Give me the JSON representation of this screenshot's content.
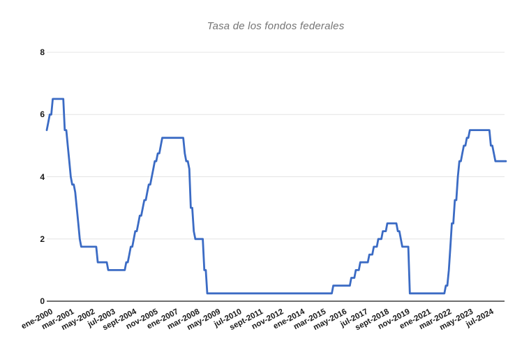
{
  "page": {
    "background": "#ffffff"
  },
  "chart_data": {
    "type": "line",
    "title": "Tasa de los fondos federales",
    "title_color": "#757575",
    "xlabel": "",
    "ylabel": "",
    "ylim": [
      0,
      8
    ],
    "y_ticks": [
      0,
      2,
      4,
      6,
      8
    ],
    "grid": true,
    "legend": "none",
    "grid_color": "#e4e4e4",
    "axis_line_color": "#6e6e6e",
    "x_tick_month_interval": 14,
    "x_tick_labels": [
      "ene-2000",
      "mar-2001",
      "may-2002",
      "jul-2003",
      "sept-2004",
      "nov-2005",
      "ene-2007",
      "mar-2008",
      "may-2009",
      "jul-2010",
      "sept-2011",
      "nov-2012",
      "ene-2014",
      "mar-2015",
      "may-2016",
      "jul-2017",
      "sept-2018",
      "nov-2019",
      "ene-2021",
      "mar-2022",
      "may-2023",
      "jul-2024"
    ],
    "series": [
      {
        "name": "Tasa de los fondos federales",
        "color": "#3b6bc4",
        "frequency": "monthly",
        "start_month": "ene-2000",
        "end_month": "jul-2025",
        "values": [
          5.5,
          5.75,
          6,
          6,
          6.5,
          6.5,
          6.5,
          6.5,
          6.5,
          6.5,
          6.5,
          6.5,
          5.5,
          5.5,
          5,
          4.5,
          4,
          3.75,
          3.75,
          3.5,
          3,
          2.5,
          2,
          1.75,
          1.75,
          1.75,
          1.75,
          1.75,
          1.75,
          1.75,
          1.75,
          1.75,
          1.75,
          1.75,
          1.25,
          1.25,
          1.25,
          1.25,
          1.25,
          1.25,
          1.25,
          1,
          1,
          1,
          1,
          1,
          1,
          1,
          1,
          1,
          1,
          1,
          1,
          1.25,
          1.25,
          1.5,
          1.75,
          1.75,
          2,
          2.25,
          2.25,
          2.5,
          2.75,
          2.75,
          3,
          3.25,
          3.25,
          3.5,
          3.75,
          3.75,
          4,
          4.25,
          4.5,
          4.5,
          4.75,
          4.75,
          5,
          5.25,
          5.25,
          5.25,
          5.25,
          5.25,
          5.25,
          5.25,
          5.25,
          5.25,
          5.25,
          5.25,
          5.25,
          5.25,
          5.25,
          5.25,
          4.75,
          4.5,
          4.5,
          4.25,
          3,
          3,
          2.25,
          2,
          2,
          2,
          2,
          2,
          2,
          1,
          1,
          0.25,
          0.25,
          0.25,
          0.25,
          0.25,
          0.25,
          0.25,
          0.25,
          0.25,
          0.25,
          0.25,
          0.25,
          0.25,
          0.25,
          0.25,
          0.25,
          0.25,
          0.25,
          0.25,
          0.25,
          0.25,
          0.25,
          0.25,
          0.25,
          0.25,
          0.25,
          0.25,
          0.25,
          0.25,
          0.25,
          0.25,
          0.25,
          0.25,
          0.25,
          0.25,
          0.25,
          0.25,
          0.25,
          0.25,
          0.25,
          0.25,
          0.25,
          0.25,
          0.25,
          0.25,
          0.25,
          0.25,
          0.25,
          0.25,
          0.25,
          0.25,
          0.25,
          0.25,
          0.25,
          0.25,
          0.25,
          0.25,
          0.25,
          0.25,
          0.25,
          0.25,
          0.25,
          0.25,
          0.25,
          0.25,
          0.25,
          0.25,
          0.25,
          0.25,
          0.25,
          0.25,
          0.25,
          0.25,
          0.25,
          0.25,
          0.25,
          0.25,
          0.25,
          0.25,
          0.25,
          0.25,
          0.25,
          0.25,
          0.25,
          0.5,
          0.5,
          0.5,
          0.5,
          0.5,
          0.5,
          0.5,
          0.5,
          0.5,
          0.5,
          0.5,
          0.5,
          0.75,
          0.75,
          0.75,
          1,
          1,
          1,
          1.25,
          1.25,
          1.25,
          1.25,
          1.25,
          1.25,
          1.5,
          1.5,
          1.5,
          1.75,
          1.75,
          1.75,
          2,
          2,
          2,
          2.25,
          2.25,
          2.25,
          2.5,
          2.5,
          2.5,
          2.5,
          2.5,
          2.5,
          2.5,
          2.25,
          2.25,
          2,
          1.75,
          1.75,
          1.75,
          1.75,
          1.75,
          0.25,
          0.25,
          0.25,
          0.25,
          0.25,
          0.25,
          0.25,
          0.25,
          0.25,
          0.25,
          0.25,
          0.25,
          0.25,
          0.25,
          0.25,
          0.25,
          0.25,
          0.25,
          0.25,
          0.25,
          0.25,
          0.25,
          0.25,
          0.25,
          0.5,
          0.5,
          1,
          1.75,
          2.5,
          2.5,
          3.25,
          3.25,
          4,
          4.5,
          4.5,
          4.75,
          5,
          5,
          5.25,
          5.25,
          5.5,
          5.5,
          5.5,
          5.5,
          5.5,
          5.5,
          5.5,
          5.5,
          5.5,
          5.5,
          5.5,
          5.5,
          5.5,
          5.5,
          5,
          5,
          4.75,
          4.5,
          4.5,
          4.5,
          4.5,
          4.5,
          4.5,
          4.5,
          4.5
        ]
      }
    ]
  }
}
